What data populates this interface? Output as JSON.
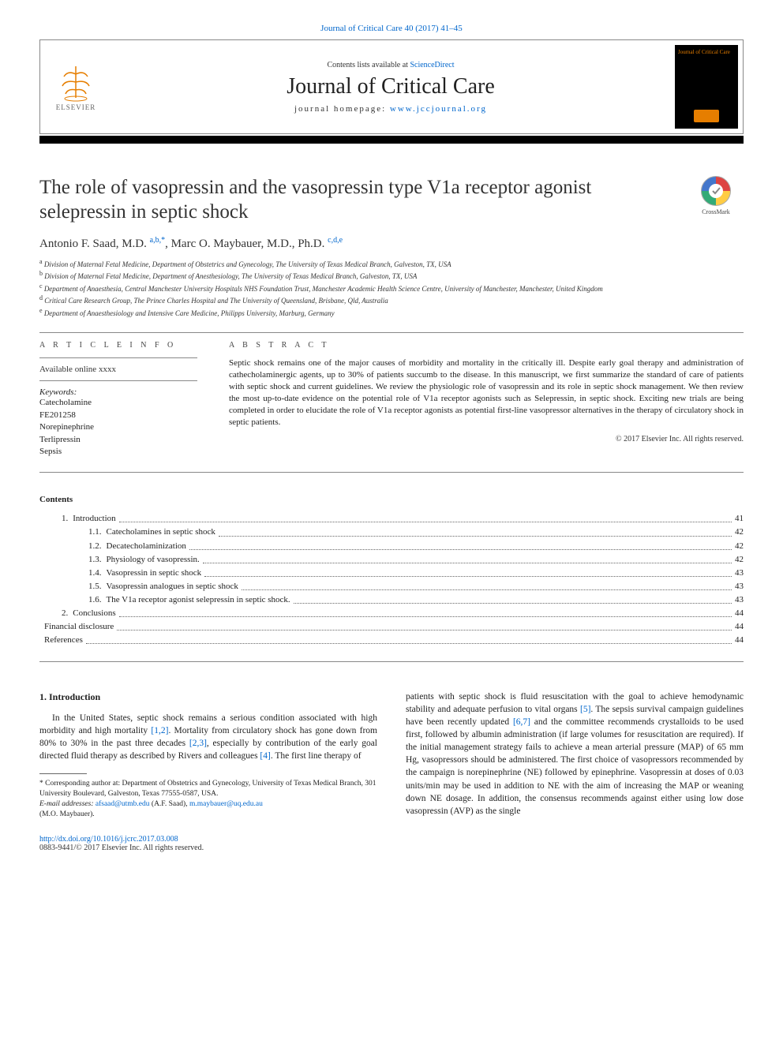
{
  "journal_ref": "Journal of Critical Care 40 (2017) 41–45",
  "header": {
    "contents_prefix": "Contents lists available at ",
    "contents_link": "ScienceDirect",
    "journal_name": "Journal of Critical Care",
    "homepage_prefix": "journal homepage: ",
    "homepage_link": "www.jccjournal.org",
    "elsevier": "ELSEVIER",
    "cover_title": "Journal of Critical Care"
  },
  "crossmark_label": "CrossMark",
  "title": "The role of vasopressin and the vasopressin type V1a receptor agonist selepressin in septic shock",
  "authors_html": "Antonio F. Saad, M.D. <sup>a,b,*</sup>, Marc O. Maybauer, M.D., Ph.D. <sup>c,d,e</sup>",
  "authors": {
    "a1_name": "Antonio F. Saad, M.D. ",
    "a1_sup": "a,b,*",
    "sep": ", ",
    "a2_name": "Marc O. Maybauer, M.D., Ph.D. ",
    "a2_sup": "c,d,e"
  },
  "affiliations": [
    {
      "sup": "a",
      "text": "Division of Maternal Fetal Medicine, Department of Obstetrics and Gynecology, The University of Texas Medical Branch, Galveston, TX, USA"
    },
    {
      "sup": "b",
      "text": "Division of Maternal Fetal Medicine, Department of Anesthesiology, The University of Texas Medical Branch, Galveston, TX, USA"
    },
    {
      "sup": "c",
      "text": "Department of Anaesthesia, Central Manchester University Hospitals NHS Foundation Trust, Manchester Academic Health Science Centre, University of Manchester, Manchester, United Kingdom"
    },
    {
      "sup": "d",
      "text": "Critical Care Research Group, The Prince Charles Hospital and The University of Queensland, Brisbane, Qld, Australia"
    },
    {
      "sup": "e",
      "text": "Department of Anaesthesiology and Intensive Care Medicine, Philipps University, Marburg, Germany"
    }
  ],
  "article_info": {
    "head": "A R T I C L E   I N F O",
    "available": "Available online xxxx",
    "keywords_label": "Keywords:",
    "keywords": [
      "Catecholamine",
      "FE201258",
      "Norepinephrine",
      "Terlipressin",
      "Sepsis"
    ]
  },
  "abstract": {
    "head": "A B S T R A C T",
    "text": "Septic shock remains one of the major causes of morbidity and mortality in the critically ill. Despite early goal therapy and administration of cathecholaminergic agents, up to 30% of patients succumb to the disease. In this manuscript, we first summarize the standard of care of patients with septic shock and current guidelines. We review the physiologic role of vasopressin and its role in septic shock management. We then review the most up-to-date evidence on the potential role of V1a receptor agonists such as Selepressin, in septic shock. Exciting new trials are being completed in order to elucidate the role of V1a receptor agonists as potential first-line vasopressor alternatives in the therapy of circulatory shock in septic patients.",
    "copyright": "© 2017 Elsevier Inc. All rights reserved."
  },
  "contents_label": "Contents",
  "toc": [
    {
      "level": 1,
      "num": "1.",
      "label": "Introduction",
      "page": "41"
    },
    {
      "level": 2,
      "num": "1.1.",
      "label": "Catecholamines in septic shock",
      "page": "42"
    },
    {
      "level": 2,
      "num": "1.2.",
      "label": "Decatecholaminization",
      "page": "42"
    },
    {
      "level": 2,
      "num": "1.3.",
      "label": "Physiology of vasopressin.",
      "page": "42"
    },
    {
      "level": 2,
      "num": "1.4.",
      "label": "Vasopressin in septic shock",
      "page": "43"
    },
    {
      "level": 2,
      "num": "1.5.",
      "label": "Vasopressin analogues in septic shock",
      "page": "43"
    },
    {
      "level": 2,
      "num": "1.6.",
      "label": "The V1a receptor agonist selepressin in septic shock.",
      "page": "43"
    },
    {
      "level": 1,
      "num": "2.",
      "label": "Conclusions",
      "page": "44"
    },
    {
      "level": 0,
      "num": "",
      "label": "Financial disclosure",
      "page": "44"
    },
    {
      "level": 0,
      "num": "",
      "label": "References",
      "page": "44"
    }
  ],
  "intro": {
    "heading": "1. Introduction",
    "col1_pre": "In the United States, septic shock remains a serious condition associated with high morbidity and high mortality ",
    "ref12": "[1,2]",
    "col1_mid1": ". Mortality from circulatory shock has gone down from 80% to 30% in the past three decades ",
    "ref23": "[2,3]",
    "col1_mid2": ", especially by contribution of the early goal directed fluid therapy as described by Rivers and colleagues ",
    "ref4": "[4]",
    "col1_end": ". The first line therapy of",
    "col2_pre": "patients with septic shock is fluid resuscitation with the goal to achieve hemodynamic stability and adequate perfusion to vital organs ",
    "ref5": "[5]",
    "col2_mid1": ". The sepsis survival campaign guidelines have been recently updated ",
    "ref67": "[6,7]",
    "col2_rest": " and the committee recommends crystalloids to be used first, followed by albumin administration (if large volumes for resuscitation are required). If the initial management strategy fails to achieve a mean arterial pressure (MAP) of 65 mm Hg, vasopressors should be administered. The first choice of vasopressors recommended by the campaign is norepinephrine (NE) followed by epinephrine. Vasopressin at doses of 0.03 units/min may be used in addition to NE with the aim of increasing the MAP or weaning down NE dosage. In addition, the consensus recommends against either using low dose vasopressin (AVP) as the single"
  },
  "footnotes": {
    "corr_label": "* Corresponding author at: Department of Obstetrics and Gynecology, University of Texas Medical Branch, 301 University Boulevard, Galveston, Texas 77555-0587, USA.",
    "email_label": "E-mail addresses:",
    "email1": "afsaad@utmb.edu",
    "email1_who": " (A.F. Saad), ",
    "email2": "m.maybauer@uq.edu.au",
    "email2_who": "(M.O. Maybauer)."
  },
  "footer": {
    "doi": "http://dx.doi.org/10.1016/j.jcrc.2017.03.008",
    "issn_copy": "0883-9441/© 2017 Elsevier Inc. All rights reserved."
  },
  "colors": {
    "link": "#0066cc",
    "elsevier_orange": "#e67e00",
    "rule": "#888888",
    "text": "#222222"
  }
}
